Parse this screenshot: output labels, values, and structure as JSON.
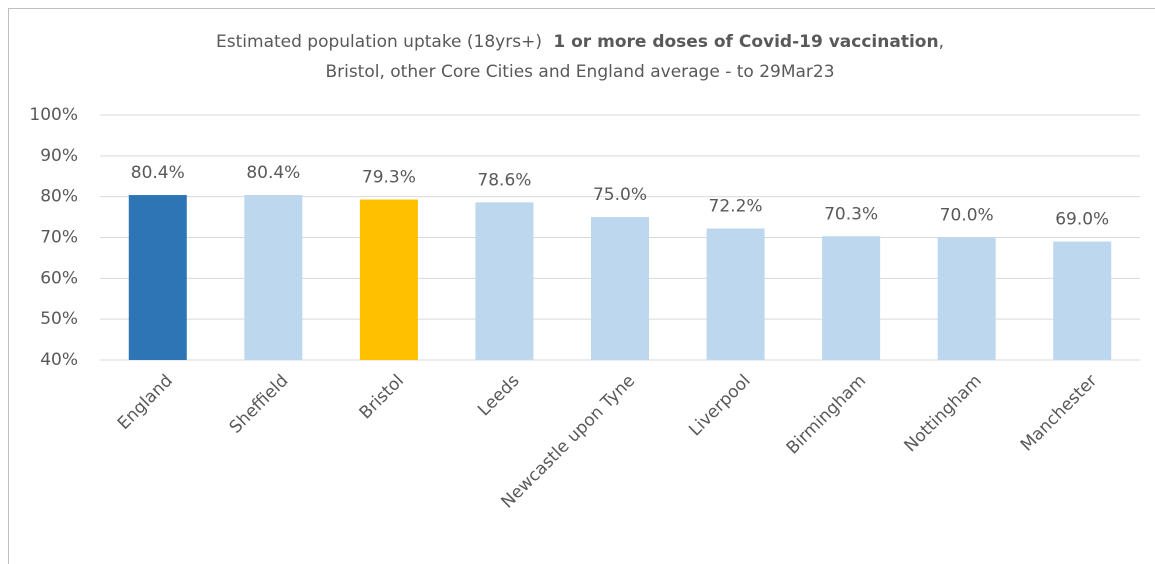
{
  "chart_data": {
    "type": "bar",
    "title_parts": [
      "Estimated population uptake (18yrs+)",
      "1 or more doses of Covid-19 vaccination",
      ","
    ],
    "subtitle": "Bristol, other Core Cities and England average - to 29Mar23",
    "categories": [
      "England",
      "Sheffield",
      "Bristol",
      "Leeds",
      "Newcastle upon Tyne",
      "Liverpool",
      "Birmingham",
      "Nottingham",
      "Manchester"
    ],
    "values": [
      80.4,
      80.4,
      79.3,
      78.6,
      75.0,
      72.2,
      70.3,
      70.0,
      69.0
    ],
    "value_labels": [
      "80.4%",
      "80.4%",
      "79.3%",
      "78.6%",
      "75.0%",
      "72.2%",
      "70.3%",
      "70.0%",
      "69.0%"
    ],
    "colors": [
      "#2e75b6",
      "#bdd7ee",
      "#ffc000",
      "#bdd7ee",
      "#bdd7ee",
      "#bdd7ee",
      "#bdd7ee",
      "#bdd7ee",
      "#bdd7ee"
    ],
    "ylim": [
      40,
      100
    ],
    "yticks": [
      {
        "value": 40,
        "label": "40%"
      },
      {
        "value": 50,
        "label": "50%"
      },
      {
        "value": 60,
        "label": "60%"
      },
      {
        "value": 70,
        "label": "70%"
      },
      {
        "value": 80,
        "label": "80%"
      },
      {
        "value": 90,
        "label": "90%"
      },
      {
        "value": 100,
        "label": "100%"
      }
    ],
    "grid": true
  }
}
